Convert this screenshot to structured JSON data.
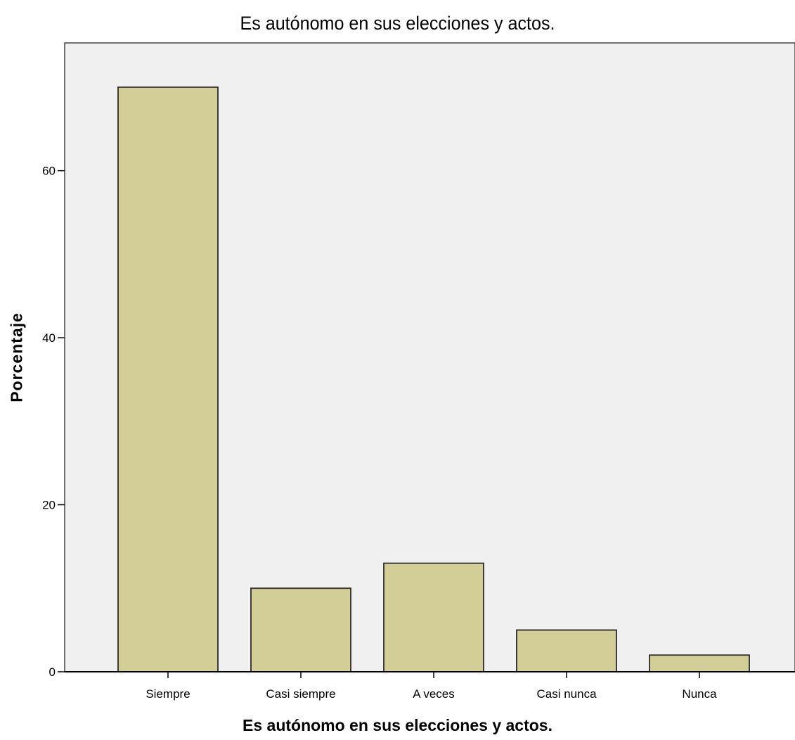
{
  "chart_data": {
    "type": "bar",
    "title": "Es autónomo en sus elecciones y actos.",
    "xlabel": "Es autónomo en sus elecciones y actos.",
    "ylabel": "Porcentaje",
    "categories": [
      "Siempre",
      "Casi siempre",
      "A veces",
      "Casi nunca",
      "Nunca"
    ],
    "values": [
      70,
      10,
      13,
      5,
      2
    ],
    "ylim": [
      0,
      75.3
    ],
    "yticks": [
      0,
      20,
      40,
      60
    ],
    "grid": false,
    "legend": "none",
    "colors": {
      "bar_fill": "#d3ce97",
      "bar_stroke": "#2b2b2b",
      "plot_background": "#f0f0f0",
      "axis": "#000000"
    }
  }
}
